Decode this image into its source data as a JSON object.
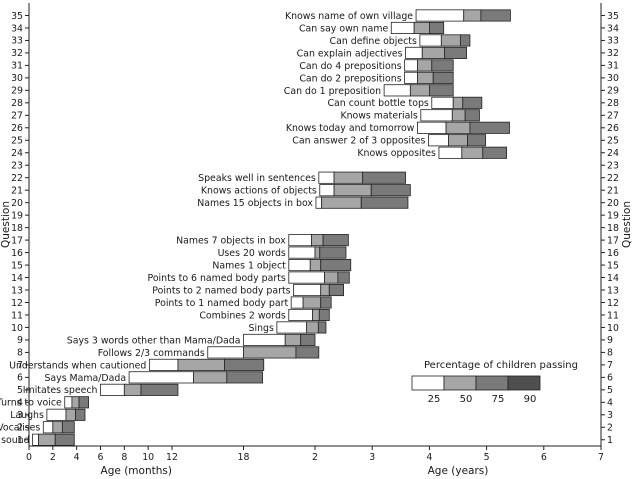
{
  "chart_data": {
    "type": "bar",
    "subtype": "developmental-percentile-ranges",
    "ylabel": "Question",
    "xlabel_left": "Age (months)",
    "xlabel_right": "Age (years)",
    "x_scale": "piecewise: months 0–24 on left segment, years 2–7 on right segment",
    "grid": false,
    "legend": {
      "title": "Percentage of children passing",
      "percentiles": [
        "25",
        "50",
        "75",
        "90"
      ],
      "colors": [
        "#ffffff",
        "#a6a6a6",
        "#7a7a7a",
        "#4f4f4f"
      ],
      "placement": "lower-right"
    },
    "x_ticks": [
      {
        "label": "0",
        "months": 0
      },
      {
        "label": "2",
        "months": 2
      },
      {
        "label": "4",
        "months": 4
      },
      {
        "label": "6",
        "months": 6
      },
      {
        "label": "8",
        "months": 8
      },
      {
        "label": "10",
        "months": 10
      },
      {
        "label": "12",
        "months": 12
      },
      {
        "label": "18",
        "months": 18
      },
      {
        "label": "2",
        "months": 24
      },
      {
        "label": "3",
        "months": 36
      },
      {
        "label": "4",
        "months": 48
      },
      {
        "label": "5",
        "months": 60
      },
      {
        "label": "6",
        "months": 72
      },
      {
        "label": "7",
        "months": 84
      }
    ],
    "y_ticks": [
      "1",
      "2",
      "3",
      "4",
      "5",
      "6",
      "7",
      "8",
      "9",
      "10",
      "11",
      "12",
      "13",
      "14",
      "15",
      "16",
      "17",
      "18",
      "19",
      "20",
      "21",
      "22",
      "23",
      "24",
      "25",
      "26",
      "27",
      "28",
      "29",
      "30",
      "31",
      "32",
      "33",
      "34",
      "35"
    ],
    "items": [
      {
        "q": 1,
        "label": "Startles to sound",
        "m": [
          0.3,
          0.8,
          2.2,
          3.8
        ]
      },
      {
        "q": 2,
        "label": "Vocalises",
        "m": [
          1.2,
          2.0,
          2.8,
          3.8
        ]
      },
      {
        "q": 3,
        "label": "Laughs",
        "m": [
          1.5,
          3.1,
          3.9,
          4.7
        ]
      },
      {
        "q": 4,
        "label": "Turns to voice",
        "m": [
          3.0,
          3.6,
          4.2,
          5.0
        ]
      },
      {
        "q": 5,
        "label": "Imitates speech",
        "m": [
          6.0,
          8.0,
          9.4,
          12.5
        ]
      },
      {
        "q": 6,
        "label": "Says Mama/Dada",
        "m": [
          8.4,
          13.8,
          16.6,
          19.6
        ]
      },
      {
        "q": 7,
        "label": "Understands when cautioned",
        "m": [
          10.1,
          12.5,
          16.4,
          19.7
        ]
      },
      {
        "q": 8,
        "label": "Follows 2/3 commands",
        "m": [
          15.0,
          18.0,
          22.4,
          24.8
        ]
      },
      {
        "q": 9,
        "label": "Says 3 words other than Mama/Dada",
        "m": [
          18.0,
          21.5,
          22.8,
          24.0
        ]
      },
      {
        "q": 10,
        "label": "Sings",
        "m": [
          20.8,
          23.3,
          24.7,
          26.3
        ]
      },
      {
        "q": 11,
        "label": "Combines 2 words",
        "m": [
          21.8,
          23.8,
          24.9,
          27.0
        ]
      },
      {
        "q": 12,
        "label": "Points to 1 named body part",
        "m": [
          22.0,
          23.0,
          25.2,
          27.4
        ]
      },
      {
        "q": 13,
        "label": "Points to 2 named body parts",
        "m": [
          22.2,
          25.2,
          27.0,
          30.0
        ]
      },
      {
        "q": 14,
        "label": "Points to 6 named body parts",
        "m": [
          21.8,
          26.0,
          28.8,
          31.2
        ]
      },
      {
        "q": 15,
        "label": "Names 1 object",
        "m": [
          21.8,
          23.6,
          25.2,
          31.5
        ]
      },
      {
        "q": 16,
        "label": "Uses 20 words",
        "m": [
          21.8,
          24.0,
          25.0,
          30.5
        ]
      },
      {
        "q": 17,
        "label": "Names 7 objects in box",
        "m": [
          21.8,
          23.7,
          25.7,
          31.0
        ]
      },
      {
        "q": 20,
        "label": "Names 15 objects in box",
        "m": [
          24.2,
          25.4,
          33.7,
          43.5
        ]
      },
      {
        "q": 21,
        "label": "Knows actions of objects",
        "m": [
          25.0,
          28.0,
          35.8,
          44.0
        ]
      },
      {
        "q": 22,
        "label": "Speaks well in sentences",
        "m": [
          24.8,
          28.0,
          34.0,
          43.0
        ]
      },
      {
        "q": 24,
        "label": "Knows opposites",
        "m": [
          50.0,
          54.8,
          59.2,
          64.2
        ]
      },
      {
        "q": 25,
        "label": "Can answer 2 of 3 opposites",
        "m": [
          47.8,
          52.0,
          56.0,
          59.8
        ]
      },
      {
        "q": 26,
        "label": "Knows today and tomorrow",
        "m": [
          45.5,
          51.5,
          56.5,
          64.8
        ]
      },
      {
        "q": 27,
        "label": "Knows materials",
        "m": [
          46.2,
          52.8,
          55.5,
          58.5
        ]
      },
      {
        "q": 28,
        "label": "Can count bottle tops",
        "m": [
          48.5,
          53.0,
          55.0,
          59.0
        ]
      },
      {
        "q": 29,
        "label": "Can do 1 preposition",
        "m": [
          38.5,
          44.0,
          48.0,
          53.0
        ]
      },
      {
        "q": 30,
        "label": "Can do 2 prepositions",
        "m": [
          42.8,
          45.5,
          48.8,
          53.0
        ]
      },
      {
        "q": 31,
        "label": "Can do 4 prepositions",
        "m": [
          42.8,
          45.5,
          48.5,
          53.0
        ]
      },
      {
        "q": 32,
        "label": "Can explain adjectives",
        "m": [
          43.0,
          46.5,
          51.2,
          55.8
        ]
      },
      {
        "q": 33,
        "label": "Can define objects",
        "m": [
          46.0,
          50.5,
          54.5,
          56.5
        ]
      },
      {
        "q": 34,
        "label": "Can say own name",
        "m": [
          40.0,
          44.8,
          48.0,
          51.0
        ]
      },
      {
        "q": 35,
        "label": "Knows name of own village",
        "m": [
          45.2,
          55.2,
          58.8,
          65.0
        ]
      }
    ]
  }
}
